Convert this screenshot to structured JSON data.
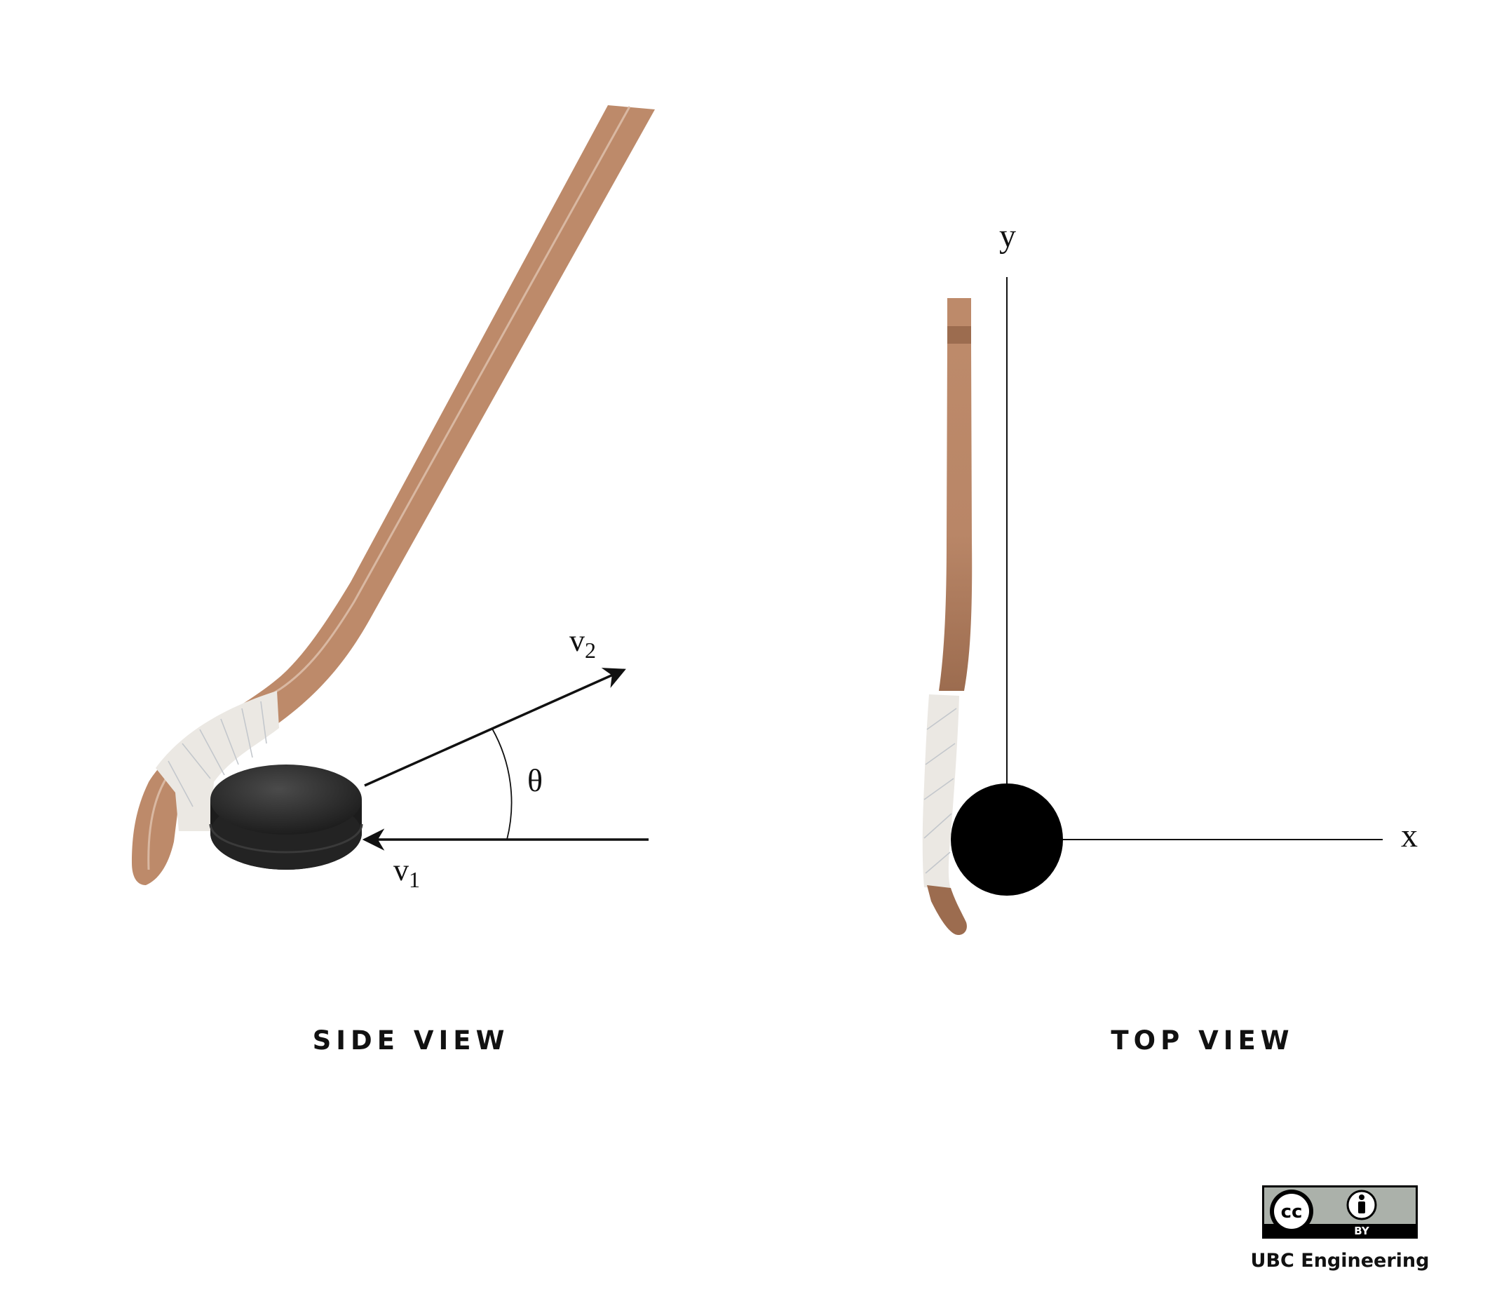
{
  "side_view": {
    "caption": "SIDE VIEW",
    "velocity_in_label": "v",
    "velocity_in_subscript": "1",
    "velocity_out_label": "v",
    "velocity_out_subscript": "2",
    "angle_label": "θ"
  },
  "top_view": {
    "caption": "TOP VIEW",
    "x_axis_label": "x",
    "y_axis_label": "y"
  },
  "license": {
    "cc_text": "cc",
    "by_text": "BY",
    "credit": "UBC Engineering"
  },
  "colors": {
    "stick_wood": "#bd8a6a",
    "stick_dark": "#9c6a4d",
    "tape": "#ebe8e3",
    "puck": "#1c1c1c",
    "badge_gray": "#abb1aa"
  }
}
